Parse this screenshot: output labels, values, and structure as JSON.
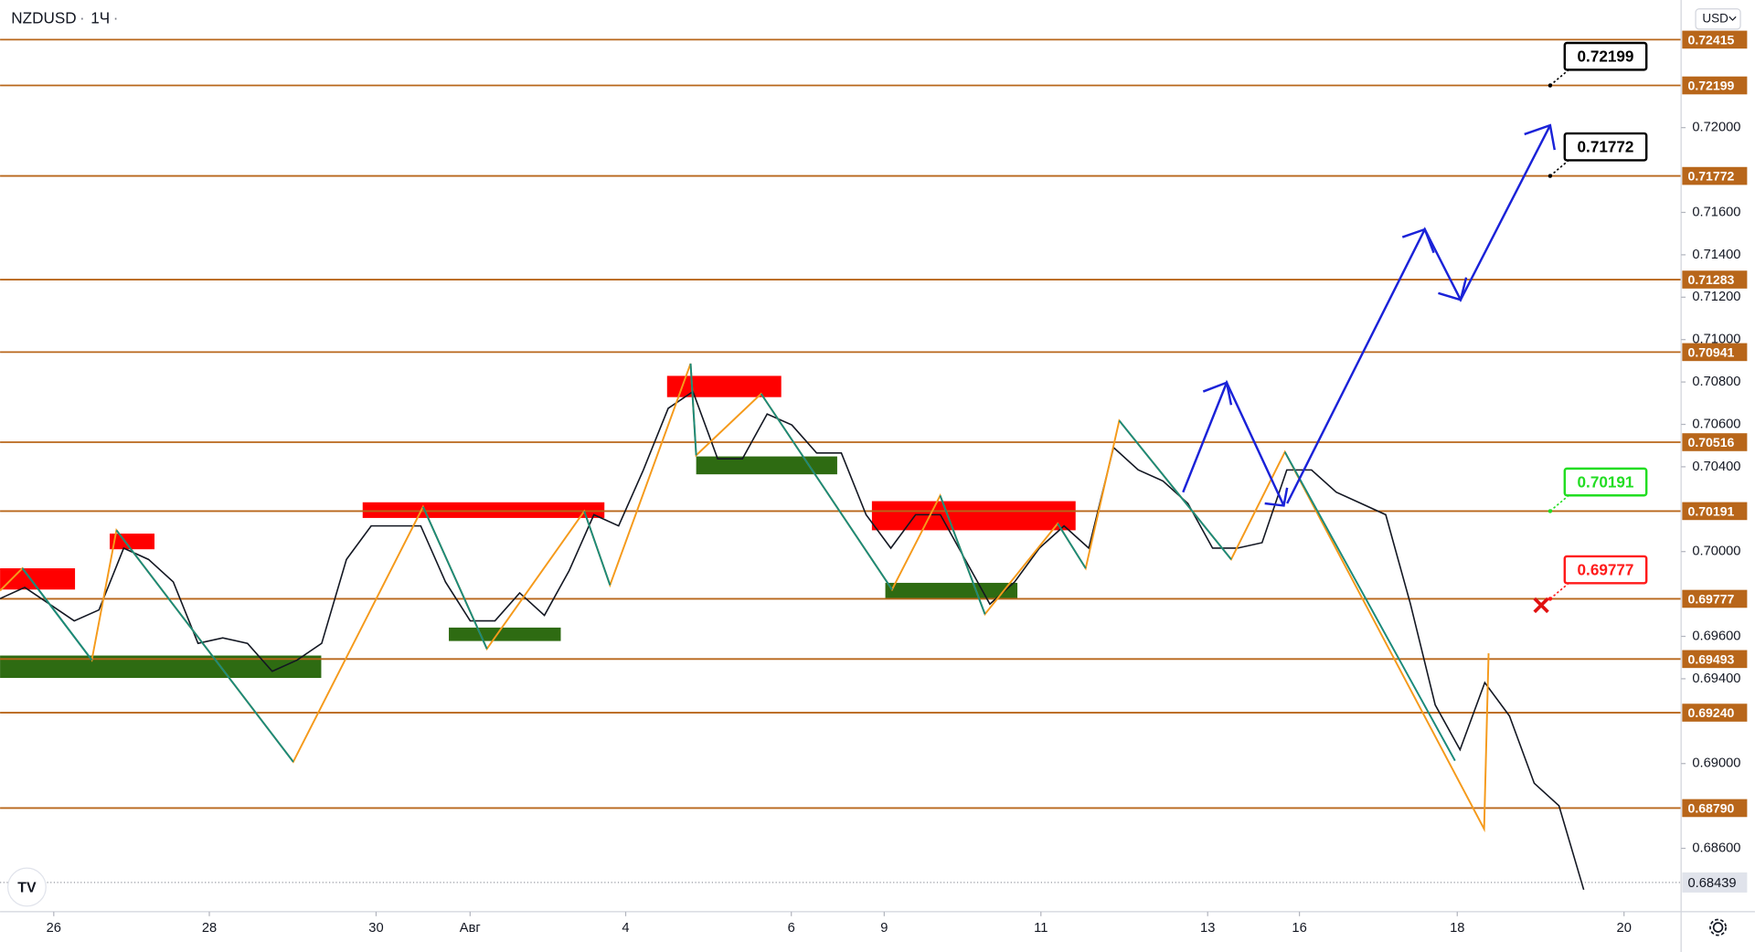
{
  "chart_data": {
    "type": "line",
    "symbol": "NZDUSD",
    "interval": "1Ч",
    "currency": "USD",
    "color": "#131722",
    "values": [
      0.69778,
      0.69831,
      0.69752,
      0.69673,
      0.69725,
      0.70016,
      0.69963,
      0.69857,
      0.69567,
      0.69593,
      0.69567,
      0.69435,
      0.69488,
      0.69567,
      0.69963,
      0.70121,
      0.70121,
      0.70121,
      0.69857,
      0.69673,
      0.69673,
      0.69805,
      0.69699,
      0.6991,
      0.70174,
      0.70121,
      0.70385,
      0.70676,
      0.70755,
      0.70438,
      0.70438,
      0.70649,
      0.70597,
      0.70465,
      0.70465,
      0.70174,
      0.70016,
      0.70174,
      0.70174,
      0.69963,
      0.69752,
      0.69857,
      0.70016,
      0.70121,
      0.70016,
      0.70491,
      0.70385,
      0.70333,
      0.70227,
      0.70016,
      0.70016,
      0.70042,
      0.70385,
      0.70385,
      0.7028,
      0.70227,
      0.70174,
      0.69752,
      0.69277,
      0.69065,
      0.69382,
      0.69224,
      0.68907,
      0.68801,
      0.68405
    ],
    "ylim": [
      0.68301,
      0.72602
    ],
    "yticks": [
      {
        "value": 0.686,
        "label": "0.68600"
      },
      {
        "value": 0.69,
        "label": "0.69000"
      },
      {
        "value": 0.694,
        "label": "0.69400"
      },
      {
        "value": 0.696,
        "label": "0.69600"
      },
      {
        "value": 0.7,
        "label": "0.70000"
      },
      {
        "value": 0.704,
        "label": "0.70400"
      },
      {
        "value": 0.706,
        "label": "0.70600"
      },
      {
        "value": 0.708,
        "label": "0.70800"
      },
      {
        "value": 0.71,
        "label": "0.71000"
      },
      {
        "value": 0.712,
        "label": "0.71200"
      },
      {
        "value": 0.714,
        "label": "0.71400"
      },
      {
        "value": 0.716,
        "label": "0.71600"
      },
      {
        "value": 0.72,
        "label": "0.72000"
      }
    ],
    "levels": [
      {
        "value": 0.72415,
        "label": "0.72415"
      },
      {
        "value": 0.72199,
        "label": "0.72199"
      },
      {
        "value": 0.71772,
        "label": "0.71772"
      },
      {
        "value": 0.71283,
        "label": "0.71283"
      },
      {
        "value": 0.70941,
        "label": "0.70941"
      },
      {
        "value": 0.70516,
        "label": "0.70516"
      },
      {
        "value": 0.70191,
        "label": "0.70191"
      },
      {
        "value": 0.69777,
        "label": "0.69777"
      },
      {
        "value": 0.69493,
        "label": "0.69493"
      },
      {
        "value": 0.6924,
        "label": "0.69240"
      },
      {
        "value": 0.6879,
        "label": "0.68790"
      }
    ],
    "level_color": "#b8661a",
    "current_price": {
      "value": 0.68439,
      "label": "0.68439"
    },
    "callouts": [
      {
        "value": 0.72199,
        "label": "0.72199",
        "color": "#000000"
      },
      {
        "value": 0.71772,
        "label": "0.71772",
        "color": "#000000"
      },
      {
        "value": 0.70191,
        "label": "0.70191",
        "color": "#22dd22"
      },
      {
        "value": 0.69777,
        "label": "0.69777",
        "color": "#ff1a1a"
      }
    ],
    "x_labels": [
      "26",
      "28",
      "30",
      "Авг",
      "4",
      "6",
      "9",
      "11",
      "13",
      "16",
      "18",
      "20"
    ]
  }
}
